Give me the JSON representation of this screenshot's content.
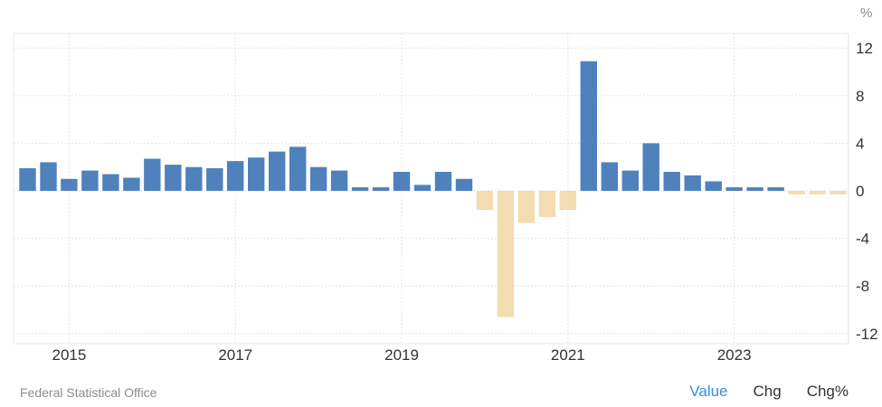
{
  "chart_data": {
    "type": "bar",
    "title": "",
    "xlabel": "",
    "ylabel": "%",
    "unit": "%",
    "ylim": [
      -12,
      12
    ],
    "yticks": [
      12,
      8,
      4,
      0,
      -4,
      -8,
      -12
    ],
    "xtick_labels": [
      "2015",
      "2017",
      "2019",
      "2021",
      "2023"
    ],
    "grid": true,
    "legend": null,
    "categories": [
      "2014Q3",
      "2014Q4",
      "2015Q1",
      "2015Q2",
      "2015Q3",
      "2015Q4",
      "2016Q1",
      "2016Q2",
      "2016Q3",
      "2016Q4",
      "2017Q1",
      "2017Q2",
      "2017Q3",
      "2017Q4",
      "2018Q1",
      "2018Q2",
      "2018Q3",
      "2018Q4",
      "2019Q1",
      "2019Q2",
      "2019Q3",
      "2019Q4",
      "2020Q1",
      "2020Q2",
      "2020Q3",
      "2020Q4",
      "2021Q1",
      "2021Q2",
      "2021Q3",
      "2021Q4",
      "2022Q1",
      "2022Q2",
      "2022Q3",
      "2022Q4",
      "2023Q1",
      "2023Q2",
      "2023Q3",
      "2023Q4",
      "2024Q1",
      "2024Q2"
    ],
    "values": [
      1.9,
      2.4,
      1.0,
      1.7,
      1.4,
      1.1,
      2.7,
      2.2,
      2.0,
      1.9,
      2.5,
      2.8,
      3.3,
      3.7,
      2.0,
      1.7,
      0.3,
      0.3,
      1.6,
      0.5,
      1.6,
      1.0,
      -1.6,
      -10.6,
      -2.7,
      -2.2,
      -1.6,
      10.9,
      2.4,
      1.7,
      4.0,
      1.6,
      1.3,
      0.8,
      0.3,
      0.3,
      0.3,
      -0.3,
      -0.3,
      -0.3
    ],
    "colors": {
      "positive": "#4f81bd",
      "negative": "#f2dcb0"
    }
  },
  "footer": {
    "source": "Federal Statistical Office",
    "toggles": [
      {
        "label": "Value",
        "active": true
      },
      {
        "label": "Chg",
        "active": false
      },
      {
        "label": "Chg%",
        "active": false
      }
    ]
  },
  "colors": {
    "accent": "#3a8fd3",
    "grid": "#e6e6e6",
    "axis_text": "#333333"
  }
}
